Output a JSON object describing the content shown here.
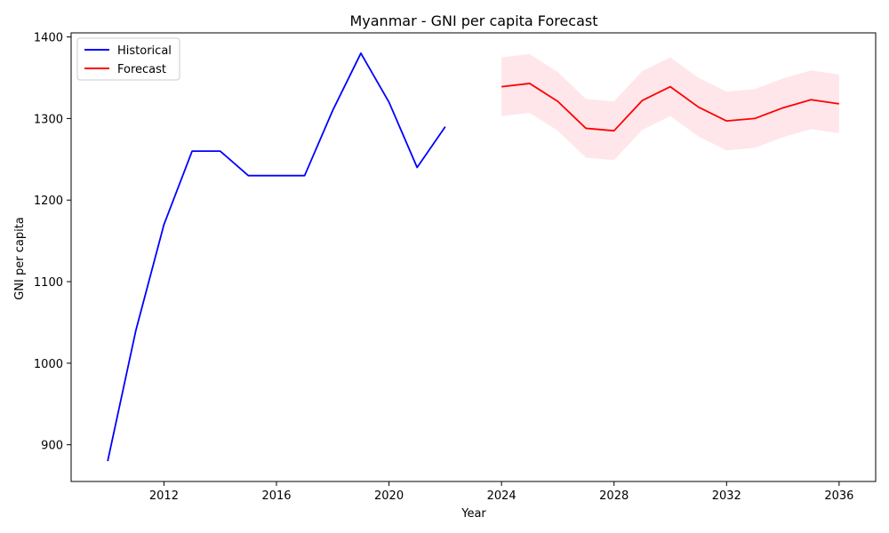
{
  "chart_data": {
    "type": "line",
    "title": "Myanmar - GNI per capita Forecast",
    "xlabel": "Year",
    "ylabel": "GNI per capita",
    "xlim": [
      2008.7,
      2037.3
    ],
    "ylim": [
      855,
      1405
    ],
    "x_ticks": [
      2012,
      2016,
      2020,
      2024,
      2028,
      2032,
      2036
    ],
    "y_ticks": [
      900,
      1000,
      1100,
      1200,
      1300,
      1400
    ],
    "grid": false,
    "legend_position": "top-left",
    "series": [
      {
        "name": "Historical",
        "color": "#0000ff",
        "x": [
          2010,
          2011,
          2012,
          2013,
          2014,
          2015,
          2016,
          2017,
          2018,
          2019,
          2020,
          2021,
          2022
        ],
        "values": [
          880,
          1040,
          1170,
          1260,
          1260,
          1230,
          1230,
          1230,
          1310,
          1380,
          1320,
          1240,
          1290
        ]
      },
      {
        "name": "Forecast",
        "color": "#ff0000",
        "x": [
          2024,
          2025,
          2026,
          2027,
          2028,
          2029,
          2030,
          2031,
          2032,
          2033,
          2034,
          2035,
          2036
        ],
        "values": [
          1339,
          1343,
          1321,
          1288,
          1285,
          1322,
          1339,
          1314,
          1297,
          1300,
          1313,
          1323,
          1318
        ],
        "lower": [
          1303,
          1307,
          1285,
          1252,
          1249,
          1286,
          1303,
          1278,
          1261,
          1264,
          1277,
          1287,
          1282
        ],
        "upper": [
          1375,
          1379,
          1357,
          1324,
          1321,
          1358,
          1375,
          1350,
          1333,
          1336,
          1349,
          1359,
          1354
        ],
        "band_color": "#ffc0cb"
      }
    ]
  }
}
